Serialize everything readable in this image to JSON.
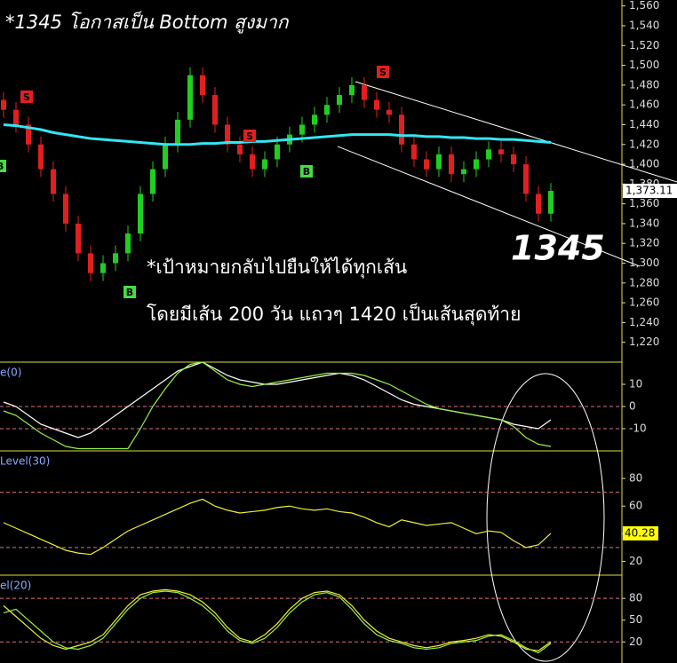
{
  "chart_data": [
    {
      "type": "candlestick",
      "title": "*1345 โอกาสเป็น Bottom สูงมาก",
      "annotations": [
        "1345",
        "*เป้าหมายกลับไปยืนให้ได้ทุกเส้น",
        "โดยมีเส้น 200 วัน แถวๆ 1420 เป็นเส้นสุดท้าย"
      ],
      "badges": [
        "S",
        "S",
        "S",
        "B",
        "B",
        "B"
      ],
      "up_color": "#22cc22",
      "down_color": "#e02020",
      "open": [
        1465,
        1455,
        1440,
        1420,
        1395,
        1370,
        1340,
        1310,
        1290,
        1300,
        1310,
        1330,
        1370,
        1395,
        1420,
        1445,
        1490,
        1470,
        1440,
        1420,
        1410,
        1395,
        1405,
        1420,
        1430,
        1440,
        1450,
        1460,
        1470,
        1480,
        1465,
        1455,
        1450,
        1420,
        1405,
        1395,
        1410,
        1390,
        1395,
        1405,
        1415,
        1410,
        1400,
        1370,
        1350
      ],
      "high": [
        1473,
        1463,
        1448,
        1428,
        1403,
        1378,
        1348,
        1318,
        1308,
        1318,
        1338,
        1378,
        1403,
        1428,
        1453,
        1498,
        1498,
        1478,
        1448,
        1428,
        1418,
        1413,
        1428,
        1438,
        1448,
        1458,
        1468,
        1478,
        1488,
        1488,
        1473,
        1463,
        1458,
        1428,
        1413,
        1418,
        1418,
        1403,
        1413,
        1423,
        1423,
        1418,
        1408,
        1378,
        1381
      ],
      "low": [
        1447,
        1432,
        1412,
        1387,
        1362,
        1332,
        1302,
        1282,
        1282,
        1292,
        1302,
        1322,
        1362,
        1387,
        1412,
        1437,
        1462,
        1432,
        1412,
        1402,
        1387,
        1387,
        1397,
        1412,
        1422,
        1432,
        1442,
        1452,
        1462,
        1457,
        1447,
        1442,
        1412,
        1397,
        1387,
        1387,
        1382,
        1382,
        1387,
        1397,
        1402,
        1392,
        1362,
        1342,
        1342
      ],
      "close": [
        1455,
        1440,
        1420,
        1395,
        1370,
        1340,
        1310,
        1290,
        1300,
        1310,
        1330,
        1370,
        1395,
        1420,
        1445,
        1490,
        1470,
        1440,
        1420,
        1410,
        1395,
        1405,
        1420,
        1430,
        1440,
        1450,
        1460,
        1470,
        1480,
        1465,
        1455,
        1450,
        1420,
        1405,
        1395,
        1410,
        1390,
        1395,
        1405,
        1415,
        1410,
        1400,
        1370,
        1350,
        1373.11
      ],
      "last_price": {
        "value": 1373.11,
        "label": "1,373.11"
      },
      "series": [
        {
          "color": "#33e6f0",
          "values": [
            1440,
            1439,
            1437,
            1435,
            1432,
            1430,
            1428,
            1426,
            1425,
            1424,
            1423,
            1422,
            1421,
            1420,
            1420,
            1420,
            1421,
            1421,
            1422,
            1422,
            1423,
            1423,
            1424,
            1425,
            1426,
            1427,
            1428,
            1429,
            1430,
            1430,
            1430,
            1430,
            1429,
            1429,
            1428,
            1428,
            1427,
            1427,
            1426,
            1426,
            1425,
            1425,
            1424,
            1423,
            1422
          ]
        }
      ],
      "ylim": [
        1200,
        1566
      ],
      "yticks": [
        {
          "value": 1560,
          "label": "1,560"
        },
        {
          "value": 1540,
          "label": "1,540"
        },
        {
          "value": 1520,
          "label": "1,520"
        },
        {
          "value": 1500,
          "label": "1,500"
        },
        {
          "value": 1480,
          "label": "1,480"
        },
        {
          "value": 1460,
          "label": "1,460"
        },
        {
          "value": 1440,
          "label": "1,440"
        },
        {
          "value": 1420,
          "label": "1,420"
        },
        {
          "value": 1400,
          "label": "1,400"
        },
        {
          "value": 1380,
          "label": "1,380"
        },
        {
          "value": 1360,
          "label": "1,360"
        },
        {
          "value": 1340,
          "label": "1,340"
        },
        {
          "value": 1320,
          "label": "1,320"
        },
        {
          "value": 1300,
          "label": "1,300"
        },
        {
          "value": 1280,
          "label": "1,280"
        },
        {
          "value": 1260,
          "label": "1,260"
        },
        {
          "value": 1240,
          "label": "1,240"
        },
        {
          "value": 1220,
          "label": "1,220"
        }
      ]
    },
    {
      "type": "line",
      "title": "e(0)",
      "series": [
        {
          "color": "#ffffff",
          "values": [
            2,
            0,
            -4,
            -8,
            -10,
            -12,
            -14,
            -12,
            -8,
            -4,
            0,
            4,
            8,
            12,
            16,
            18,
            20,
            17,
            14,
            12,
            11,
            10,
            10,
            11,
            12,
            13,
            14,
            15,
            14,
            12,
            9,
            6,
            3,
            1,
            0,
            -1,
            -2,
            -3,
            -4,
            -5,
            -6,
            -8,
            -9,
            -10,
            -6
          ]
        },
        {
          "color": "#99ee44",
          "values": [
            -2,
            -4,
            -8,
            -12,
            -15,
            -18,
            -19,
            -19,
            -19,
            -19,
            -19,
            -10,
            0,
            8,
            15,
            19,
            20,
            16,
            12,
            10,
            9,
            10,
            11,
            12,
            13,
            14,
            15,
            15,
            15,
            14,
            12,
            10,
            7,
            4,
            1,
            -1,
            -2,
            -3,
            -4,
            -5,
            -6,
            -9,
            -14,
            -17,
            -18
          ]
        }
      ],
      "ref_lines": [
        0,
        -10
      ],
      "ylim": [
        -20,
        20
      ],
      "yticks": [
        10,
        0,
        -10
      ]
    },
    {
      "type": "line",
      "title": "Level(30)",
      "series": [
        {
          "color": "#eeee33",
          "values": [
            48,
            44,
            40,
            36,
            32,
            28,
            26,
            25,
            30,
            36,
            42,
            46,
            50,
            54,
            58,
            62,
            65,
            60,
            57,
            55,
            56,
            57,
            59,
            60,
            58,
            57,
            58,
            56,
            55,
            52,
            48,
            45,
            50,
            48,
            46,
            47,
            48,
            44,
            40,
            42,
            41,
            35,
            30,
            32,
            40.28
          ]
        }
      ],
      "last_label": "40.28",
      "ref_lines": [
        70,
        30
      ],
      "ylim": [
        10,
        100
      ],
      "yticks": [
        80,
        60,
        40,
        20
      ]
    },
    {
      "type": "line",
      "title": "el(20)",
      "series": [
        {
          "color": "#eeee33",
          "values": [
            70,
            55,
            40,
            25,
            15,
            10,
            15,
            20,
            30,
            50,
            70,
            85,
            90,
            92,
            90,
            85,
            75,
            60,
            40,
            25,
            20,
            30,
            45,
            65,
            80,
            88,
            90,
            85,
            70,
            50,
            35,
            25,
            20,
            15,
            12,
            15,
            20,
            22,
            25,
            30,
            28,
            20,
            10,
            8,
            20
          ]
        },
        {
          "color": "#99ee44",
          "values": [
            60,
            65,
            50,
            35,
            20,
            12,
            10,
            15,
            25,
            45,
            65,
            80,
            88,
            90,
            88,
            80,
            70,
            55,
            35,
            22,
            18,
            25,
            40,
            60,
            75,
            85,
            88,
            82,
            65,
            45,
            30,
            22,
            18,
            12,
            10,
            12,
            18,
            20,
            22,
            28,
            30,
            22,
            12,
            5,
            18
          ]
        }
      ],
      "ref_lines": [
        80,
        20
      ],
      "ylim": [
        -9,
        112
      ],
      "yticks": [
        80,
        50,
        20
      ]
    }
  ]
}
